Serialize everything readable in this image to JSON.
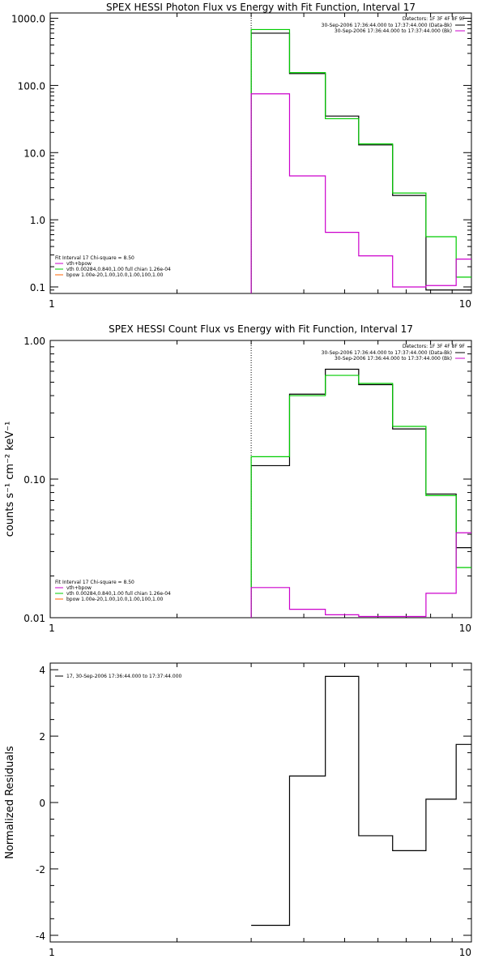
{
  "colors": {
    "background": "#ffffff",
    "axes": "#000000",
    "data": "#000000",
    "fit_total": "#00cc00",
    "background_model": "#cc00cc",
    "vth": "#cc00cc",
    "bpow": "#ff6600",
    "residual": "#000000"
  },
  "chart_data": [
    {
      "type": "line",
      "title": "SPEX HESSI Photon Flux vs Energy with Fit Function, Interval 17",
      "xlabel": "",
      "ylabel": "",
      "xscale": "log",
      "yscale": "log",
      "xlim": [
        1,
        10
      ],
      "ylim": [
        0.08,
        1200
      ],
      "xticks": [
        {
          "value": 1,
          "label": "1"
        },
        {
          "value": 10,
          "label": "10"
        }
      ],
      "yticks": [
        {
          "value": 0.1,
          "label": "0.1"
        },
        {
          "value": 1,
          "label": "1.0"
        },
        {
          "value": 10,
          "label": "10.0"
        },
        {
          "value": 100,
          "label": "100.0"
        },
        {
          "value": 1000,
          "label": "1000.0"
        }
      ],
      "grid": false,
      "fit_range_marker": 3,
      "header": {
        "detectors": "Detectors: 1F 3F 4F 8F 9F",
        "entries": [
          {
            "text": "30-Sep-2006 17:36:44.000 to 17:37:44.000 (Data-Bk)",
            "color": "#000000"
          },
          {
            "text": "30-Sep-2006 17:36:44.000 to 17:37:44.000 (Bk)",
            "color": "#cc00cc"
          }
        ]
      },
      "legend": {
        "position": "bottom-left",
        "title": "Fit Interval 17   Chi-square = 8.50",
        "entries": [
          {
            "text": "vth+bpow",
            "color": "#cc00cc"
          },
          {
            "text": "vth 0.00284,0.840,1.00   full chian 1.26e-04",
            "color": "#00cc00"
          },
          {
            "text": "bpow 1.00e-20,1.00,10.0,1.00,100,1.00",
            "color": "#ff6600"
          }
        ]
      },
      "series": [
        {
          "role": "data",
          "color": "#000000",
          "edges": [
            3,
            3.7,
            4.5,
            5.4,
            6.5,
            7.8,
            9.2,
            10
          ],
          "values": [
            600,
            150,
            35,
            13,
            2.3,
            0.09,
            0.09
          ]
        },
        {
          "role": "fit",
          "color": "#00cc00",
          "edges": [
            3,
            3.7,
            4.5,
            5.4,
            6.5,
            7.8,
            9.2,
            10
          ],
          "values": [
            680,
            155,
            32,
            13.5,
            2.5,
            0.56,
            0.14
          ]
        },
        {
          "role": "background",
          "color": "#cc00cc",
          "edges": [
            3,
            3.7,
            4.5,
            5.4,
            6.5,
            7.8,
            9.2,
            10
          ],
          "values": [
            75,
            4.5,
            0.65,
            0.29,
            0.1,
            0.105,
            0.26
          ]
        }
      ]
    },
    {
      "type": "line",
      "title": "SPEX HESSI Count Flux vs Energy with Fit Function, Interval 17",
      "xlabel": "",
      "ylabel": "counts s⁻¹ cm⁻² keV⁻¹",
      "xscale": "log",
      "yscale": "log",
      "xlim": [
        1,
        10
      ],
      "ylim": [
        0.01,
        1.0
      ],
      "xticks": [
        {
          "value": 1,
          "label": "1"
        },
        {
          "value": 10,
          "label": "10"
        }
      ],
      "yticks": [
        {
          "value": 0.01,
          "label": "0.01"
        },
        {
          "value": 0.1,
          "label": "0.10"
        },
        {
          "value": 1,
          "label": "1.00"
        }
      ],
      "grid": false,
      "fit_range_marker": 3,
      "header": {
        "detectors": "Detectors: 1F 3F 4F 8F 9F",
        "entries": [
          {
            "text": "30-Sep-2006 17:36:44.000 to 17:37:44.000 (Data-Bk)",
            "color": "#000000"
          },
          {
            "text": "30-Sep-2006 17:36:44.000 to 17:37:44.000 (Bk)",
            "color": "#cc00cc"
          }
        ]
      },
      "legend": {
        "position": "bottom-left",
        "title": "Fit Interval 17   Chi-square = 8.50",
        "entries": [
          {
            "text": "vth+bpow",
            "color": "#cc00cc"
          },
          {
            "text": "vth 0.00284,0.840,1.00   full chian 1.26e-04",
            "color": "#00cc00"
          },
          {
            "text": "bpow 1.00e-20,1.00,10.0,1.00,100,1.00",
            "color": "#ff6600"
          }
        ]
      },
      "series": [
        {
          "role": "data",
          "color": "#000000",
          "edges": [
            3,
            3.7,
            4.5,
            5.4,
            6.5,
            7.8,
            9.2,
            10
          ],
          "values": [
            0.125,
            0.41,
            0.62,
            0.48,
            0.23,
            0.078,
            0.032
          ]
        },
        {
          "role": "fit",
          "color": "#00cc00",
          "edges": [
            3,
            3.7,
            4.5,
            5.4,
            6.5,
            7.8,
            9.2,
            10
          ],
          "values": [
            0.145,
            0.4,
            0.56,
            0.49,
            0.24,
            0.076,
            0.023
          ]
        },
        {
          "role": "background",
          "color": "#cc00cc",
          "edges": [
            3,
            3.7,
            4.5,
            5.4,
            6.5,
            7.8,
            9.2,
            10
          ],
          "values": [
            0.0165,
            0.0115,
            0.0105,
            0.0102,
            0.0102,
            0.015,
            0.041
          ]
        }
      ]
    },
    {
      "type": "line",
      "title": "",
      "xlabel": "",
      "ylabel": "Normalized Residuals",
      "xscale": "log",
      "yscale": "linear",
      "xlim": [
        1,
        10
      ],
      "ylim": [
        -4.2,
        4.2
      ],
      "xticks": [
        {
          "value": 1,
          "label": "1"
        },
        {
          "value": 10,
          "label": "10"
        }
      ],
      "yticks": [
        {
          "value": -4,
          "label": "-4"
        },
        {
          "value": -2,
          "label": "-2"
        },
        {
          "value": 0,
          "label": "0"
        },
        {
          "value": 2,
          "label": "2"
        },
        {
          "value": 4,
          "label": "4"
        }
      ],
      "grid": false,
      "legend": {
        "position": "top-left",
        "title": "",
        "entries": [
          {
            "text": "17, 30-Sep-2006 17:36:44.000 to 17:37:44.000",
            "color": "#000000"
          }
        ]
      },
      "series": [
        {
          "role": "residuals",
          "color": "#000000",
          "edges": [
            3,
            3.7,
            4.5,
            5.4,
            6.5,
            7.8,
            9.2,
            10
          ],
          "values": [
            -3.7,
            0.8,
            3.8,
            -1.0,
            -1.45,
            0.1,
            1.75
          ]
        }
      ]
    }
  ]
}
